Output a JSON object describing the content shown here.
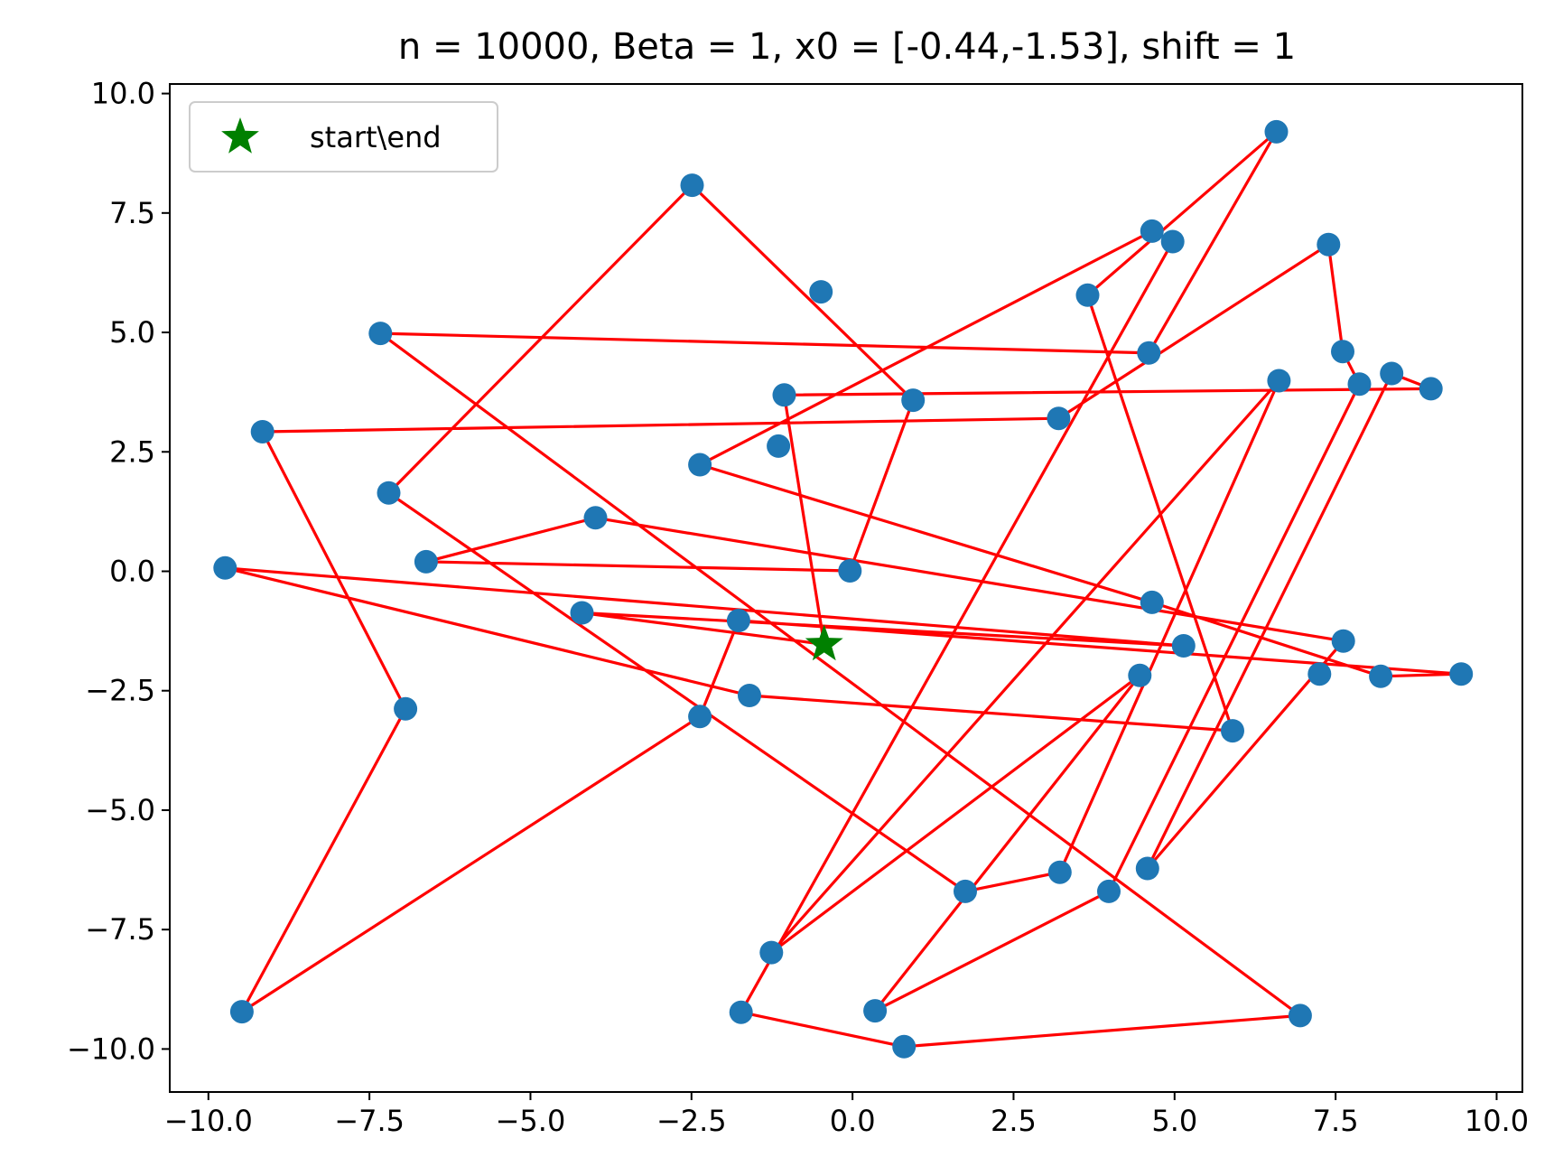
{
  "chart_data": {
    "type": "scatter",
    "title": "n = 10000, Beta = 1, x0 = [-0.44,-1.53], shift = 1",
    "xlabel": "",
    "ylabel": "",
    "xlim": [
      -10.6,
      10.4
    ],
    "ylim": [
      -10.9,
      10.2
    ],
    "grid": false,
    "legend_position": "top-left",
    "x_ticks": [
      {
        "value": -10.0,
        "label": "−10.0"
      },
      {
        "value": -7.5,
        "label": "−7.5"
      },
      {
        "value": -5.0,
        "label": "−5.0"
      },
      {
        "value": -2.5,
        "label": "−2.5"
      },
      {
        "value": 0.0,
        "label": "0.0"
      },
      {
        "value": 2.5,
        "label": "2.5"
      },
      {
        "value": 5.0,
        "label": "5.0"
      },
      {
        "value": 7.5,
        "label": "7.5"
      },
      {
        "value": 10.0,
        "label": "10.0"
      }
    ],
    "y_ticks": [
      {
        "value": 10.0,
        "label": "10.0"
      },
      {
        "value": 7.5,
        "label": "7.5"
      },
      {
        "value": 5.0,
        "label": "5.0"
      },
      {
        "value": 2.5,
        "label": "2.5"
      },
      {
        "value": 0.0,
        "label": "0.0"
      },
      {
        "value": -2.5,
        "label": "−2.5"
      },
      {
        "value": -5.0,
        "label": "−5.0"
      },
      {
        "value": -7.5,
        "label": "−7.5"
      },
      {
        "value": -10.0,
        "label": "−10.0"
      }
    ],
    "colors": {
      "points": "#1f77b4",
      "path": "#ff0000",
      "start_end": "#008000"
    },
    "legend": [
      {
        "label": "start\\end",
        "marker": "star",
        "color": "#008000"
      }
    ],
    "start_end": {
      "x": -0.44,
      "y": -1.53
    },
    "points": [
      {
        "x": -2.49,
        "y": 8.08
      },
      {
        "x": -0.49,
        "y": 5.85
      },
      {
        "x": 0.94,
        "y": 3.58
      },
      {
        "x": -7.33,
        "y": 4.98
      },
      {
        "x": 4.6,
        "y": 4.57
      },
      {
        "x": 6.58,
        "y": 9.2
      },
      {
        "x": 4.65,
        "y": 7.12
      },
      {
        "x": 4.97,
        "y": 6.9
      },
      {
        "x": 3.65,
        "y": 5.78
      },
      {
        "x": 7.39,
        "y": 6.84
      },
      {
        "x": 7.61,
        "y": 4.6
      },
      {
        "x": 8.37,
        "y": 4.14
      },
      {
        "x": 8.98,
        "y": 3.82
      },
      {
        "x": 7.87,
        "y": 3.92
      },
      {
        "x": 6.62,
        "y": 3.99
      },
      {
        "x": -1.06,
        "y": 3.69
      },
      {
        "x": 3.2,
        "y": 3.2
      },
      {
        "x": -9.16,
        "y": 2.92
      },
      {
        "x": -1.15,
        "y": 2.62
      },
      {
        "x": -2.37,
        "y": 2.23
      },
      {
        "x": -7.2,
        "y": 1.64
      },
      {
        "x": -3.99,
        "y": 1.12
      },
      {
        "x": -6.62,
        "y": 0.2
      },
      {
        "x": -0.04,
        "y": 0.01
      },
      {
        "x": -9.74,
        "y": 0.07
      },
      {
        "x": -4.2,
        "y": -0.87
      },
      {
        "x": -1.77,
        "y": -1.03
      },
      {
        "x": 4.65,
        "y": -0.65
      },
      {
        "x": 5.14,
        "y": -1.56
      },
      {
        "x": 7.62,
        "y": -1.46
      },
      {
        "x": 8.2,
        "y": -2.2
      },
      {
        "x": 9.45,
        "y": -2.15
      },
      {
        "x": 7.25,
        "y": -2.15
      },
      {
        "x": 4.46,
        "y": -2.18
      },
      {
        "x": -1.6,
        "y": -2.6
      },
      {
        "x": -6.94,
        "y": -2.88
      },
      {
        "x": -2.37,
        "y": -3.04
      },
      {
        "x": 5.9,
        "y": -3.34
      },
      {
        "x": 4.58,
        "y": -6.22
      },
      {
        "x": 3.22,
        "y": -6.3
      },
      {
        "x": 1.75,
        "y": -6.7
      },
      {
        "x": 3.98,
        "y": -6.7
      },
      {
        "x": -1.26,
        "y": -7.98
      },
      {
        "x": -9.48,
        "y": -9.22
      },
      {
        "x": -1.73,
        "y": -9.23
      },
      {
        "x": 0.35,
        "y": -9.2
      },
      {
        "x": 6.95,
        "y": -9.3
      },
      {
        "x": 0.8,
        "y": -9.95
      }
    ],
    "path": [
      {
        "x": -0.44,
        "y": -1.53
      },
      {
        "x": -1.06,
        "y": 3.69
      },
      {
        "x": 8.98,
        "y": 3.82
      },
      {
        "x": 8.37,
        "y": 4.14
      },
      {
        "x": 4.58,
        "y": -6.22
      },
      {
        "x": 7.62,
        "y": -1.46
      },
      {
        "x": -3.99,
        "y": 1.12
      },
      {
        "x": -6.62,
        "y": 0.2
      },
      {
        "x": -0.04,
        "y": 0.01
      },
      {
        "x": 0.94,
        "y": 3.58
      },
      {
        "x": -2.49,
        "y": 8.08
      },
      {
        "x": -7.2,
        "y": 1.64
      },
      {
        "x": 1.75,
        "y": -6.7
      },
      {
        "x": 3.22,
        "y": -6.3
      },
      {
        "x": 6.62,
        "y": 3.99
      },
      {
        "x": -1.26,
        "y": -7.98
      },
      {
        "x": 4.46,
        "y": -2.18
      },
      {
        "x": 0.35,
        "y": -9.2
      },
      {
        "x": 3.98,
        "y": -6.7
      },
      {
        "x": 7.87,
        "y": 3.92
      },
      {
        "x": 7.61,
        "y": 4.6
      },
      {
        "x": 7.39,
        "y": 6.84
      },
      {
        "x": 3.2,
        "y": 3.2
      },
      {
        "x": -9.16,
        "y": 2.92
      },
      {
        "x": -6.94,
        "y": -2.88
      },
      {
        "x": -9.48,
        "y": -9.22
      },
      {
        "x": -2.37,
        "y": -3.04
      },
      {
        "x": -1.77,
        "y": -1.03
      },
      {
        "x": 9.45,
        "y": -2.15
      },
      {
        "x": 8.2,
        "y": -2.2
      },
      {
        "x": 4.65,
        "y": -0.65
      },
      {
        "x": -2.37,
        "y": 2.23
      },
      {
        "x": 4.65,
        "y": 7.12
      },
      {
        "x": 4.97,
        "y": 6.9
      },
      {
        "x": -1.73,
        "y": -9.23
      },
      {
        "x": 0.8,
        "y": -9.95
      },
      {
        "x": 6.95,
        "y": -9.3
      },
      {
        "x": -7.33,
        "y": 4.98
      },
      {
        "x": 4.6,
        "y": 4.57
      },
      {
        "x": 6.58,
        "y": 9.2
      },
      {
        "x": 3.65,
        "y": 5.78
      },
      {
        "x": 5.9,
        "y": -3.34
      },
      {
        "x": -1.6,
        "y": -2.6
      },
      {
        "x": -9.74,
        "y": 0.07
      },
      {
        "x": 5.14,
        "y": -1.56
      },
      {
        "x": -4.2,
        "y": -0.87
      },
      {
        "x": -0.44,
        "y": -1.53
      }
    ]
  }
}
